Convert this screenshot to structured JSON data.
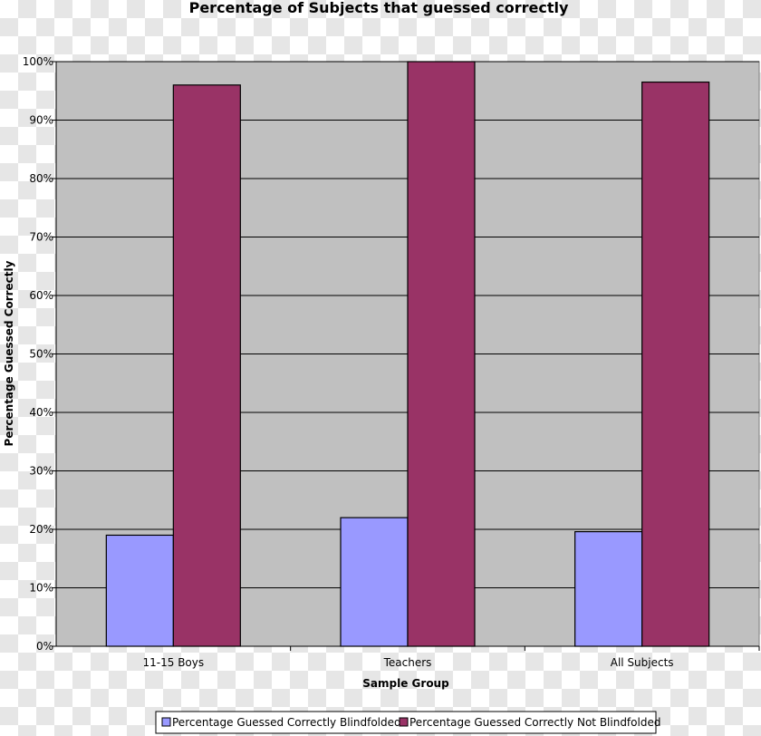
{
  "chart_data": {
    "type": "bar",
    "title": "Percentage of Subjects that guessed correctly",
    "xlabel": "Sample Group",
    "ylabel": "Percentage Guessed Correctly",
    "categories": [
      "11-15 Boys",
      "Teachers",
      "All Subjects"
    ],
    "series": [
      {
        "name": "Percentage Guessed Correctly Blindfolded",
        "values": [
          19,
          22,
          19.6
        ],
        "color": "#9999ff"
      },
      {
        "name": "Percentage Guessed Correctly Not Blindfolded",
        "values": [
          96,
          100,
          96.5
        ],
        "color": "#993366"
      }
    ],
    "ylim": [
      0,
      100
    ],
    "yticks": [
      "0%",
      "10%",
      "20%",
      "30%",
      "40%",
      "50%",
      "60%",
      "70%",
      "80%",
      "90%",
      "100%"
    ],
    "grid": true,
    "plot_background": "#c0c0c0",
    "legend_position": "bottom"
  }
}
